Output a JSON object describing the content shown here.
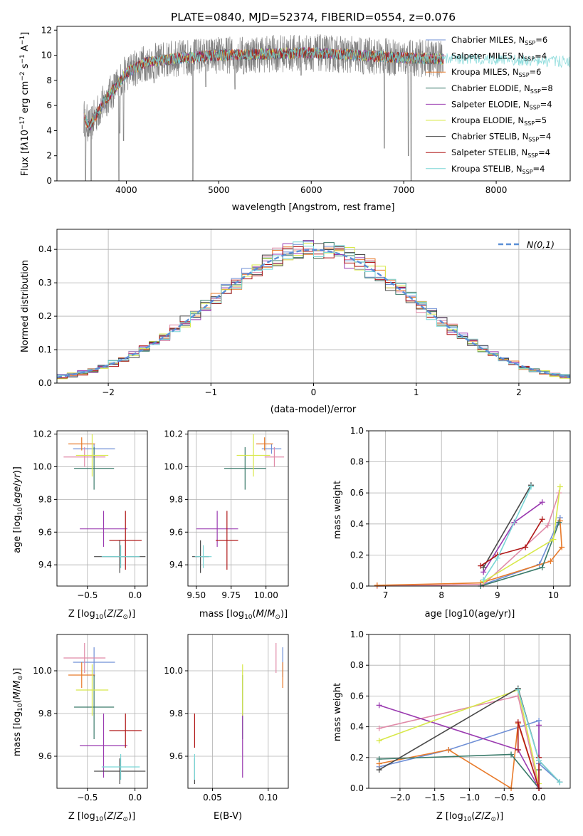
{
  "colors": {
    "Chabrier MILES": "#6f8fd6",
    "Salpeter MILES": "#e08aa8",
    "Kroupa MILES": "#e87a2a",
    "Chabrier ELODIE": "#3a7a6a",
    "Salpeter ELODIE": "#9a3ab0",
    "Kroupa ELODIE": "#d8e84a",
    "Chabrier STELIB": "#4a4a4a",
    "Salpeter STELIB": "#b01818",
    "Kroupa STELIB": "#7ad6d6",
    "data": "#808080",
    "gaussian": "#5b8fd6"
  },
  "chart_data": [
    {
      "id": "spectrum",
      "type": "line",
      "title": "PLATE=0840, MJD=52374, FIBERID=0554, z=0.076",
      "xlabel": "wavelength [Angstrom, rest frame]",
      "ylabel": "Flux [f_λ 10^-17 erg cm^-2 s^-1 A^-1]",
      "xlim": [
        3250,
        8800
      ],
      "ylim": [
        0,
        12.3
      ],
      "xticks": [
        "4000",
        "5000",
        "6000",
        "7000",
        "8000"
      ],
      "yticks": [
        "0",
        "2",
        "4",
        "6",
        "8",
        "10",
        "12"
      ],
      "legend": "top-right",
      "series": [
        {
          "name": "Chabrier MILES, N_SSP=6"
        },
        {
          "name": "Salpeter MILES, N_SSP=4"
        },
        {
          "name": "Kroupa MILES, N_SSP=6"
        },
        {
          "name": "Chabrier ELODIE, N_SSP=8"
        },
        {
          "name": "Salpeter ELODIE, N_SSP=4"
        },
        {
          "name": "Kroupa ELODIE, N_SSP=5"
        },
        {
          "name": "Chabrier STELIB, N_SSP=4"
        },
        {
          "name": "Salpeter STELIB, N_SSP=4"
        },
        {
          "name": "Kroupa STELIB, N_SSP=4"
        }
      ],
      "continuum": {
        "x": [
          3550,
          3600,
          3700,
          3800,
          3900,
          4000,
          4200,
          4500,
          4800,
          5000,
          5500,
          6000,
          6500,
          7000,
          7400,
          7800,
          8200,
          8500
        ],
        "y": [
          5.0,
          4.3,
          5.6,
          6.7,
          7.6,
          8.6,
          9.4,
          9.7,
          9.9,
          10.0,
          10.1,
          10.2,
          10.0,
          9.8,
          9.7,
          9.7,
          9.6,
          9.5
        ]
      },
      "dips": [
        {
          "x": 3930,
          "y": 3.8
        },
        {
          "x": 3970,
          "y": 3.2
        },
        {
          "x": 4226,
          "y": 8.0
        },
        {
          "x": 4300,
          "y": 7.8
        },
        {
          "x": 4861,
          "y": 7.5
        },
        {
          "x": 5175,
          "y": 7.3
        },
        {
          "x": 5270,
          "y": 8.5
        },
        {
          "x": 5890,
          "y": 8.4
        },
        {
          "x": 6563,
          "y": 8.5
        },
        {
          "x": 7050,
          "y": 2.0
        },
        {
          "x": 7080,
          "y": 0.0
        },
        {
          "x": 6790,
          "y": 2.6
        },
        {
          "x": 4720,
          "y": 0.0
        },
        {
          "x": 3920,
          "y": 0.0
        },
        {
          "x": 3560,
          "y": 0.0
        },
        {
          "x": 3620,
          "y": 0.0
        }
      ]
    },
    {
      "id": "histogram",
      "type": "bar",
      "xlabel": "(data-model)/error",
      "ylabel": "Normed distribution",
      "xlim": [
        -2.5,
        2.5
      ],
      "ylim": [
        0,
        0.46
      ],
      "xticks": [
        "−2",
        "−1",
        "0",
        "1",
        "2"
      ],
      "yticks": [
        "0.0",
        "0.1",
        "0.2",
        "0.3",
        "0.4"
      ],
      "legend": "top-right",
      "legend_label": "N(0,1)",
      "bin_edges_step": 0.1,
      "bins_per_series": 50
    },
    {
      "id": "age_vs_Z",
      "type": "scatter",
      "xlabel": "Z [log10(Z/Z⊙)]",
      "ylabel": "age  [log10(age/yr)]",
      "xlim": [
        -0.82,
        0.13
      ],
      "ylim": [
        9.27,
        10.22
      ],
      "xticks": [
        "−0.5",
        "0.0"
      ],
      "yticks": [
        "9.4",
        "9.6",
        "9.8",
        "10.0",
        "10.2"
      ],
      "points": [
        {
          "series": "Chabrier MILES",
          "x": -0.43,
          "y": 10.11,
          "xerr": 0.22,
          "yerr": 0.03
        },
        {
          "series": "Salpeter MILES",
          "x": -0.53,
          "y": 10.06,
          "xerr": 0.22,
          "yerr": 0.06
        },
        {
          "series": "Kroupa MILES",
          "x": -0.56,
          "y": 10.14,
          "xerr": 0.14,
          "yerr": 0.04
        },
        {
          "series": "Chabrier ELODIE",
          "x": -0.43,
          "y": 9.99,
          "xerr": 0.21,
          "yerr": 0.13
        },
        {
          "series": "Salpeter ELODIE",
          "x": -0.33,
          "y": 9.62,
          "xerr": 0.25,
          "yerr": 0.11
        },
        {
          "series": "Kroupa ELODIE",
          "x": -0.45,
          "y": 10.07,
          "xerr": 0.17,
          "yerr": 0.13
        },
        {
          "series": "Chabrier STELIB",
          "x": -0.16,
          "y": 9.45,
          "xerr": 0.27,
          "yerr": 0.1
        },
        {
          "series": "Salpeter STELIB",
          "x": -0.1,
          "y": 9.55,
          "xerr": 0.17,
          "yerr": 0.18
        },
        {
          "series": "Kroupa STELIB",
          "x": -0.15,
          "y": 9.45,
          "xerr": 0.2,
          "yerr": 0.07
        }
      ]
    },
    {
      "id": "age_vs_mass",
      "type": "scatter",
      "xlabel": "mass [log10(M/M⊙)]",
      "ylabel": "",
      "xlim": [
        9.44,
        10.16
      ],
      "ylim": [
        9.27,
        10.22
      ],
      "xticks": [
        "9.50",
        "9.75",
        "10.00"
      ],
      "yticks": [
        "9.4",
        "9.6",
        "9.8",
        "10.0",
        "10.2"
      ],
      "points": [
        {
          "series": "Chabrier MILES",
          "x": 10.04,
          "y": 10.11,
          "xerr": 0.07,
          "yerr": 0.03
        },
        {
          "series": "Salpeter MILES",
          "x": 10.06,
          "y": 10.06,
          "xerr": 0.07,
          "yerr": 0.06
        },
        {
          "series": "Kroupa MILES",
          "x": 9.99,
          "y": 10.14,
          "xerr": 0.06,
          "yerr": 0.04
        },
        {
          "series": "Chabrier ELODIE",
          "x": 9.85,
          "y": 9.99,
          "xerr": 0.15,
          "yerr": 0.13
        },
        {
          "series": "Salpeter ELODIE",
          "x": 9.65,
          "y": 9.62,
          "xerr": 0.15,
          "yerr": 0.11
        },
        {
          "series": "Kroupa ELODIE",
          "x": 9.91,
          "y": 10.07,
          "xerr": 0.12,
          "yerr": 0.13
        },
        {
          "series": "Chabrier STELIB",
          "x": 9.53,
          "y": 9.45,
          "xerr": 0.06,
          "yerr": 0.1
        },
        {
          "series": "Salpeter STELIB",
          "x": 9.72,
          "y": 9.55,
          "xerr": 0.08,
          "yerr": 0.18
        },
        {
          "series": "Kroupa STELIB",
          "x": 9.55,
          "y": 9.45,
          "xerr": 0.06,
          "yerr": 0.07
        }
      ]
    },
    {
      "id": "weight_vs_age",
      "type": "line",
      "xlabel": "age  [log10(age/yr)]",
      "ylabel": "mass weight",
      "xlim": [
        6.7,
        10.3
      ],
      "ylim": [
        0,
        1.0
      ],
      "xticks": [
        "7",
        "8",
        "9",
        "10"
      ],
      "yticks": [
        "0.0",
        "0.2",
        "0.4",
        "0.6",
        "0.8",
        "1.0"
      ],
      "series": [
        {
          "color": "Chabrier MILES",
          "points": [
            [
              8.75,
              0.01
            ],
            [
              9.75,
              0.14
            ],
            [
              10.12,
              0.44
            ]
          ]
        },
        {
          "color": "Salpeter MILES",
          "points": [
            [
              6.85,
              0.0
            ],
            [
              8.75,
              0.01
            ],
            [
              9.9,
              0.39
            ],
            [
              10.1,
              0.6
            ]
          ]
        },
        {
          "color": "Kroupa MILES",
          "points": [
            [
              6.85,
              0.005
            ],
            [
              8.7,
              0.02
            ],
            [
              9.95,
              0.16
            ],
            [
              10.15,
              0.25
            ],
            [
              10.12,
              0.42
            ]
          ]
        },
        {
          "color": "Chabrier ELODIE",
          "points": [
            [
              8.7,
              0.0
            ],
            [
              9.8,
              0.12
            ],
            [
              10.1,
              0.41
            ]
          ]
        },
        {
          "color": "Salpeter ELODIE",
          "points": [
            [
              8.75,
              0.09
            ],
            [
              9.3,
              0.41
            ],
            [
              9.8,
              0.54
            ]
          ]
        },
        {
          "color": "Kroupa ELODIE",
          "points": [
            [
              8.75,
              0.03
            ],
            [
              10.0,
              0.3
            ],
            [
              10.12,
              0.64
            ]
          ]
        },
        {
          "color": "Chabrier STELIB",
          "points": [
            [
              8.75,
              0.12
            ],
            [
              9.6,
              0.65
            ]
          ]
        },
        {
          "color": "Salpeter STELIB",
          "points": [
            [
              8.7,
              0.13
            ],
            [
              9.0,
              0.2
            ],
            [
              9.5,
              0.25
            ],
            [
              9.8,
              0.43
            ]
          ]
        },
        {
          "color": "Kroupa STELIB",
          "points": [
            [
              8.75,
              0.04
            ],
            [
              9.0,
              0.18
            ],
            [
              9.6,
              0.64
            ]
          ]
        }
      ]
    },
    {
      "id": "mass_vs_Z",
      "type": "scatter",
      "xlabel": "Z [log10(Z/Z⊙)]",
      "ylabel": "mass [log10(M/M⊙)]",
      "xlim": [
        -0.82,
        0.13
      ],
      "ylim": [
        9.45,
        10.17
      ],
      "xticks": [
        "−0.5",
        "0.0"
      ],
      "yticks": [
        "9.6",
        "9.8",
        "10.0"
      ],
      "points": [
        {
          "series": "Chabrier MILES",
          "x": -0.43,
          "y": 10.04,
          "xerr": 0.22,
          "yerr": 0.07
        },
        {
          "series": "Salpeter MILES",
          "x": -0.53,
          "y": 10.06,
          "xerr": 0.22,
          "yerr": 0.07
        },
        {
          "series": "Kroupa MILES",
          "x": -0.56,
          "y": 9.98,
          "xerr": 0.14,
          "yerr": 0.06
        },
        {
          "series": "Chabrier ELODIE",
          "x": -0.43,
          "y": 9.83,
          "xerr": 0.21,
          "yerr": 0.15
        },
        {
          "series": "Salpeter ELODIE",
          "x": -0.33,
          "y": 9.65,
          "xerr": 0.25,
          "yerr": 0.15
        },
        {
          "series": "Kroupa ELODIE",
          "x": -0.45,
          "y": 9.91,
          "xerr": 0.17,
          "yerr": 0.12
        },
        {
          "series": "Chabrier STELIB",
          "x": -0.16,
          "y": 9.53,
          "xerr": 0.27,
          "yerr": 0.06
        },
        {
          "series": "Salpeter STELIB",
          "x": -0.1,
          "y": 9.72,
          "xerr": 0.17,
          "yerr": 0.08
        },
        {
          "series": "Kroupa STELIB",
          "x": -0.15,
          "y": 9.55,
          "xerr": 0.2,
          "yerr": 0.06
        }
      ]
    },
    {
      "id": "mass_vs_EBV",
      "type": "scatter",
      "xlabel": "E(B-V)",
      "ylabel": "",
      "xlim": [
        0.028,
        0.118
      ],
      "ylim": [
        9.45,
        10.17
      ],
      "xticks": [
        "0.05",
        "0.10"
      ],
      "yticks": [
        "9.6",
        "9.8",
        "10.0"
      ],
      "points": [
        {
          "series": "Chabrier MILES",
          "x": 0.113,
          "y": 10.04,
          "yerr": 0.07
        },
        {
          "series": "Salpeter MILES",
          "x": 0.107,
          "y": 10.06,
          "yerr": 0.07
        },
        {
          "series": "Kroupa MILES",
          "x": 0.113,
          "y": 9.98,
          "yerr": 0.06
        },
        {
          "series": "Chabrier ELODIE",
          "x": 0.077,
          "y": 9.83,
          "yerr": 0.15
        },
        {
          "series": "Salpeter ELODIE",
          "x": 0.077,
          "y": 9.65,
          "yerr": 0.15
        },
        {
          "series": "Kroupa ELODIE",
          "x": 0.077,
          "y": 9.91,
          "yerr": 0.12
        },
        {
          "series": "Chabrier STELIB",
          "x": 0.034,
          "y": 9.53,
          "yerr": 0.06
        },
        {
          "series": "Salpeter STELIB",
          "x": 0.034,
          "y": 9.72,
          "yerr": 0.08
        },
        {
          "series": "Kroupa STELIB",
          "x": 0.034,
          "y": 9.55,
          "yerr": 0.06
        }
      ]
    },
    {
      "id": "weight_vs_Z",
      "type": "line",
      "xlabel": "Z [log10(Z/Z⊙)]",
      "ylabel": "mass weight",
      "xlim": [
        -2.45,
        0.45
      ],
      "ylim": [
        0,
        1.0
      ],
      "xticks": [
        "−2.0",
        "−1.5",
        "−1.0",
        "−0.5",
        "0.0"
      ],
      "yticks": [
        "0.0",
        "0.2",
        "0.4",
        "0.6",
        "0.8",
        "1.0"
      ],
      "series": [
        {
          "color": "Chabrier MILES",
          "points": [
            [
              -2.3,
              0.14
            ],
            [
              -1.3,
              0.25
            ],
            [
              0.0,
              0.44
            ],
            [
              0.0,
              0.16
            ],
            [
              0.3,
              0.04
            ]
          ]
        },
        {
          "color": "Salpeter MILES",
          "points": [
            [
              -2.3,
              0.39
            ],
            [
              -0.3,
              0.6
            ],
            [
              0.0,
              0.0
            ]
          ]
        },
        {
          "color": "Kroupa MILES",
          "points": [
            [
              -2.3,
              0.16
            ],
            [
              -1.3,
              0.25
            ],
            [
              -0.4,
              0.0
            ],
            [
              -0.3,
              0.42
            ],
            [
              0.0,
              0.0
            ]
          ]
        },
        {
          "color": "Chabrier ELODIE",
          "points": [
            [
              -2.3,
              0.19
            ],
            [
              -0.4,
              0.22
            ],
            [
              0.0,
              0.0
            ],
            [
              0.0,
              0.12
            ]
          ]
        },
        {
          "color": "Salpeter ELODIE",
          "points": [
            [
              -2.3,
              0.54
            ],
            [
              -0.3,
              0.25
            ],
            [
              0.0,
              0.0
            ],
            [
              0.0,
              0.41
            ]
          ]
        },
        {
          "color": "Kroupa ELODIE",
          "points": [
            [
              -2.3,
              0.31
            ],
            [
              -0.3,
              0.64
            ],
            [
              0.0,
              0.03
            ]
          ]
        },
        {
          "color": "Chabrier STELIB",
          "points": [
            [
              -2.3,
              0.12
            ],
            [
              -0.3,
              0.65
            ],
            [
              0.0,
              0.18
            ],
            [
              0.3,
              0.04
            ]
          ]
        },
        {
          "color": "Salpeter STELIB",
          "points": [
            [
              -0.3,
              0.25
            ],
            [
              -0.3,
              0.43
            ],
            [
              0.0,
              0.0
            ],
            [
              0.0,
              0.2
            ]
          ]
        },
        {
          "color": "Kroupa STELIB",
          "points": [
            [
              -0.3,
              0.64
            ],
            [
              0.0,
              0.18
            ],
            [
              0.3,
              0.04
            ]
          ]
        }
      ]
    }
  ]
}
